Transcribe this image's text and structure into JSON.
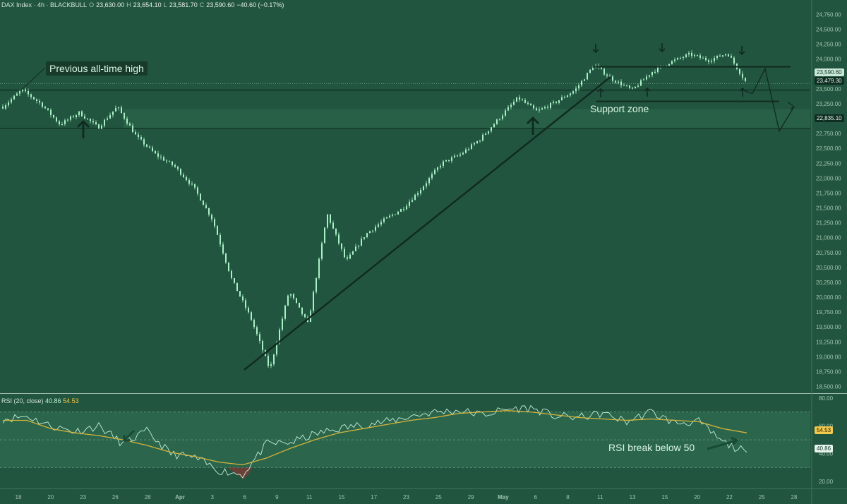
{
  "header": {
    "symbol": "DAX Index · 4h · BLACKBULL",
    "o_label": "O",
    "open": "23,630.00",
    "h_label": "H",
    "high": "23,654.10",
    "l_label": "L",
    "low": "23,581.70",
    "c_label": "C",
    "close": "23,590.60",
    "change": "−40.60 (−0.17%)"
  },
  "annotations": {
    "previous_ath": "Previous all-time high",
    "support_zone": "Support zone",
    "rsi_break": "RSI break below 50"
  },
  "price_tags": {
    "last": "23,590.60",
    "ath_level": "23,479.30",
    "support_level": "22,835.10"
  },
  "rsi_header": {
    "label": "RSI (20, close)",
    "rsi": "40.86",
    "ma": "54.53"
  },
  "rsi_tags": {
    "ma": "54.53",
    "rsi": "40.86"
  },
  "colors": {
    "background": "#22553f",
    "candle": "#a8f0c6",
    "trendline": "#102a1f",
    "rsi_line": "#c3eed8",
    "rsi_ma": "#d6b23a",
    "rsi_band": "#2d6a4f"
  },
  "chart_data": [
    {
      "type": "candlestick",
      "title": "DAX Index · 4h · BLACKBULL",
      "y_axis_ticks": [
        "24,750.00",
        "24,500.00",
        "24,250.00",
        "24,000.00",
        "23,750.00",
        "23,500.00",
        "23,250.00",
        "23,000.00",
        "22,750.00",
        "22,500.00",
        "22,250.00",
        "22,000.00",
        "21,750.00",
        "21,500.00",
        "21,250.00",
        "21,000.00",
        "20,750.00",
        "20,500.00",
        "20,250.00",
        "20,000.00",
        "19,750.00",
        "19,500.00",
        "19,250.00",
        "19,000.00",
        "18,750.00",
        "18,500.00"
      ],
      "ylim": [
        18400,
        24850
      ],
      "x_axis_ticks": [
        "18",
        "20",
        "23",
        "26",
        "28",
        "Apr",
        "3",
        "6",
        "9",
        "11",
        "15",
        "17",
        "23",
        "25",
        "29",
        "May",
        "6",
        "8",
        "11",
        "13",
        "15",
        "20",
        "22",
        "25",
        "28"
      ],
      "horizontal_levels": [
        {
          "name": "previous all-time high",
          "value": 23479.3
        },
        {
          "name": "support",
          "value": 22835.1
        },
        {
          "name": "last price",
          "value": 23590.6
        }
      ],
      "price_path": [
        [
          "18",
          23200
        ],
        [
          "18",
          23480
        ],
        [
          "20",
          23250
        ],
        [
          "23",
          22900
        ],
        [
          "23",
          23100
        ],
        [
          "26",
          22850
        ],
        [
          "26",
          23200
        ],
        [
          "28",
          22700
        ],
        [
          "28",
          22400
        ],
        [
          "Apr",
          22200
        ],
        [
          "3",
          21850
        ],
        [
          "3",
          21300
        ],
        [
          "6",
          20300
        ],
        [
          "6",
          19650
        ],
        [
          "6",
          18780
        ],
        [
          "9",
          20100
        ],
        [
          "9",
          19550
        ],
        [
          "11",
          21400
        ],
        [
          "11",
          20600
        ],
        [
          "15",
          21050
        ],
        [
          "17",
          21300
        ],
        [
          "23",
          21500
        ],
        [
          "23",
          21850
        ],
        [
          "25",
          22250
        ],
        [
          "29",
          22400
        ],
        [
          "29",
          22650
        ],
        [
          "May",
          23000
        ],
        [
          "May",
          23350
        ],
        [
          "6",
          23120
        ],
        [
          "8",
          23280
        ],
        [
          "11",
          23480
        ],
        [
          "11",
          23900
        ],
        [
          "13",
          23650
        ],
        [
          "15",
          23480
        ],
        [
          "15",
          23780
        ],
        [
          "20",
          23950
        ],
        [
          "20",
          24080
        ],
        [
          "22",
          23980
        ],
        [
          "22",
          24100
        ],
        [
          "25",
          23590
        ]
      ]
    },
    {
      "type": "line",
      "title": "RSI (20, close)",
      "y_axis_ticks": [
        "80.00",
        "60.00",
        "40.00",
        "20.00"
      ],
      "ylim": [
        15,
        82
      ],
      "levels": [
        70,
        50,
        30
      ],
      "series": [
        {
          "name": "RSI",
          "last": 40.86,
          "values": [
            [
              0,
              65
            ],
            [
              1,
              67
            ],
            [
              2,
              60
            ],
            [
              3,
              56
            ],
            [
              4,
              60
            ],
            [
              5,
              47
            ],
            [
              6,
              56
            ],
            [
              7,
              40
            ],
            [
              8,
              37
            ],
            [
              9,
              28
            ],
            [
              10,
              25
            ],
            [
              11,
              47
            ],
            [
              12,
              48
            ],
            [
              13,
              54
            ],
            [
              14,
              58
            ],
            [
              15,
              61
            ],
            [
              16,
              63
            ],
            [
              17,
              67
            ],
            [
              18,
              70
            ],
            [
              19,
              71
            ],
            [
              20,
              68
            ],
            [
              21,
              72
            ],
            [
              22,
              73
            ],
            [
              23,
              67
            ],
            [
              24,
              66
            ],
            [
              25,
              69
            ],
            [
              26,
              63
            ],
            [
              27,
              70
            ],
            [
              28,
              62
            ],
            [
              29,
              63
            ],
            [
              30,
              48
            ],
            [
              31,
              41
            ]
          ]
        },
        {
          "name": "MA",
          "last": 54.53,
          "values": [
            [
              0,
              64
            ],
            [
              1,
              64
            ],
            [
              2,
              58
            ],
            [
              3,
              55
            ],
            [
              4,
              53
            ],
            [
              5,
              50
            ],
            [
              6,
              46
            ],
            [
              7,
              41
            ],
            [
              8,
              38
            ],
            [
              9,
              34
            ],
            [
              10,
              32
            ],
            [
              11,
              37
            ],
            [
              12,
              44
            ],
            [
              13,
              50
            ],
            [
              14,
              55
            ],
            [
              15,
              58
            ],
            [
              16,
              61
            ],
            [
              17,
              64
            ],
            [
              18,
              66
            ],
            [
              19,
              69
            ],
            [
              20,
              70
            ],
            [
              21,
              71
            ],
            [
              22,
              70
            ],
            [
              23,
              68
            ],
            [
              24,
              66
            ],
            [
              25,
              65
            ],
            [
              26,
              64
            ],
            [
              27,
              65
            ],
            [
              28,
              64
            ],
            [
              29,
              63
            ],
            [
              30,
              58
            ],
            [
              31,
              55
            ]
          ]
        }
      ]
    }
  ]
}
